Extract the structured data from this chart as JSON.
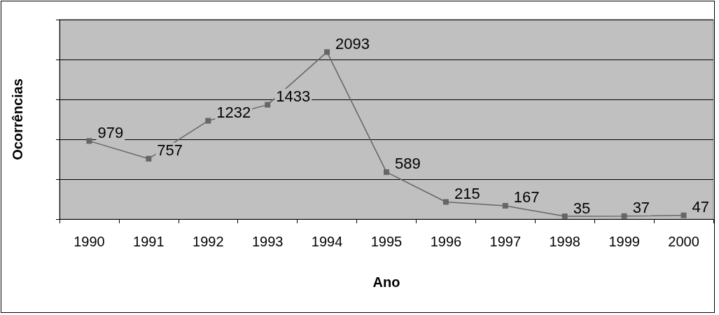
{
  "chart_data": {
    "type": "line",
    "xlabel": "Ano",
    "ylabel": "Ocorrências",
    "categories": [
      "1990",
      "1991",
      "1992",
      "1993",
      "1994",
      "1995",
      "1996",
      "1997",
      "1998",
      "1999",
      "2000"
    ],
    "values": [
      979,
      757,
      1232,
      1433,
      2093,
      589,
      215,
      167,
      35,
      37,
      47
    ],
    "color": "#666666",
    "marker": "square",
    "data_labels": true,
    "ylim": [
      0,
      2500
    ],
    "yticks": [
      {
        "value": 0,
        "label": null
      },
      {
        "value": 500,
        "label": null
      },
      {
        "value": 1000,
        "label": null
      },
      {
        "value": 1500,
        "label": null
      },
      {
        "value": 2000,
        "label": null
      },
      {
        "value": 2500,
        "label": null
      }
    ],
    "grid": "y",
    "tick_labels": "x"
  }
}
